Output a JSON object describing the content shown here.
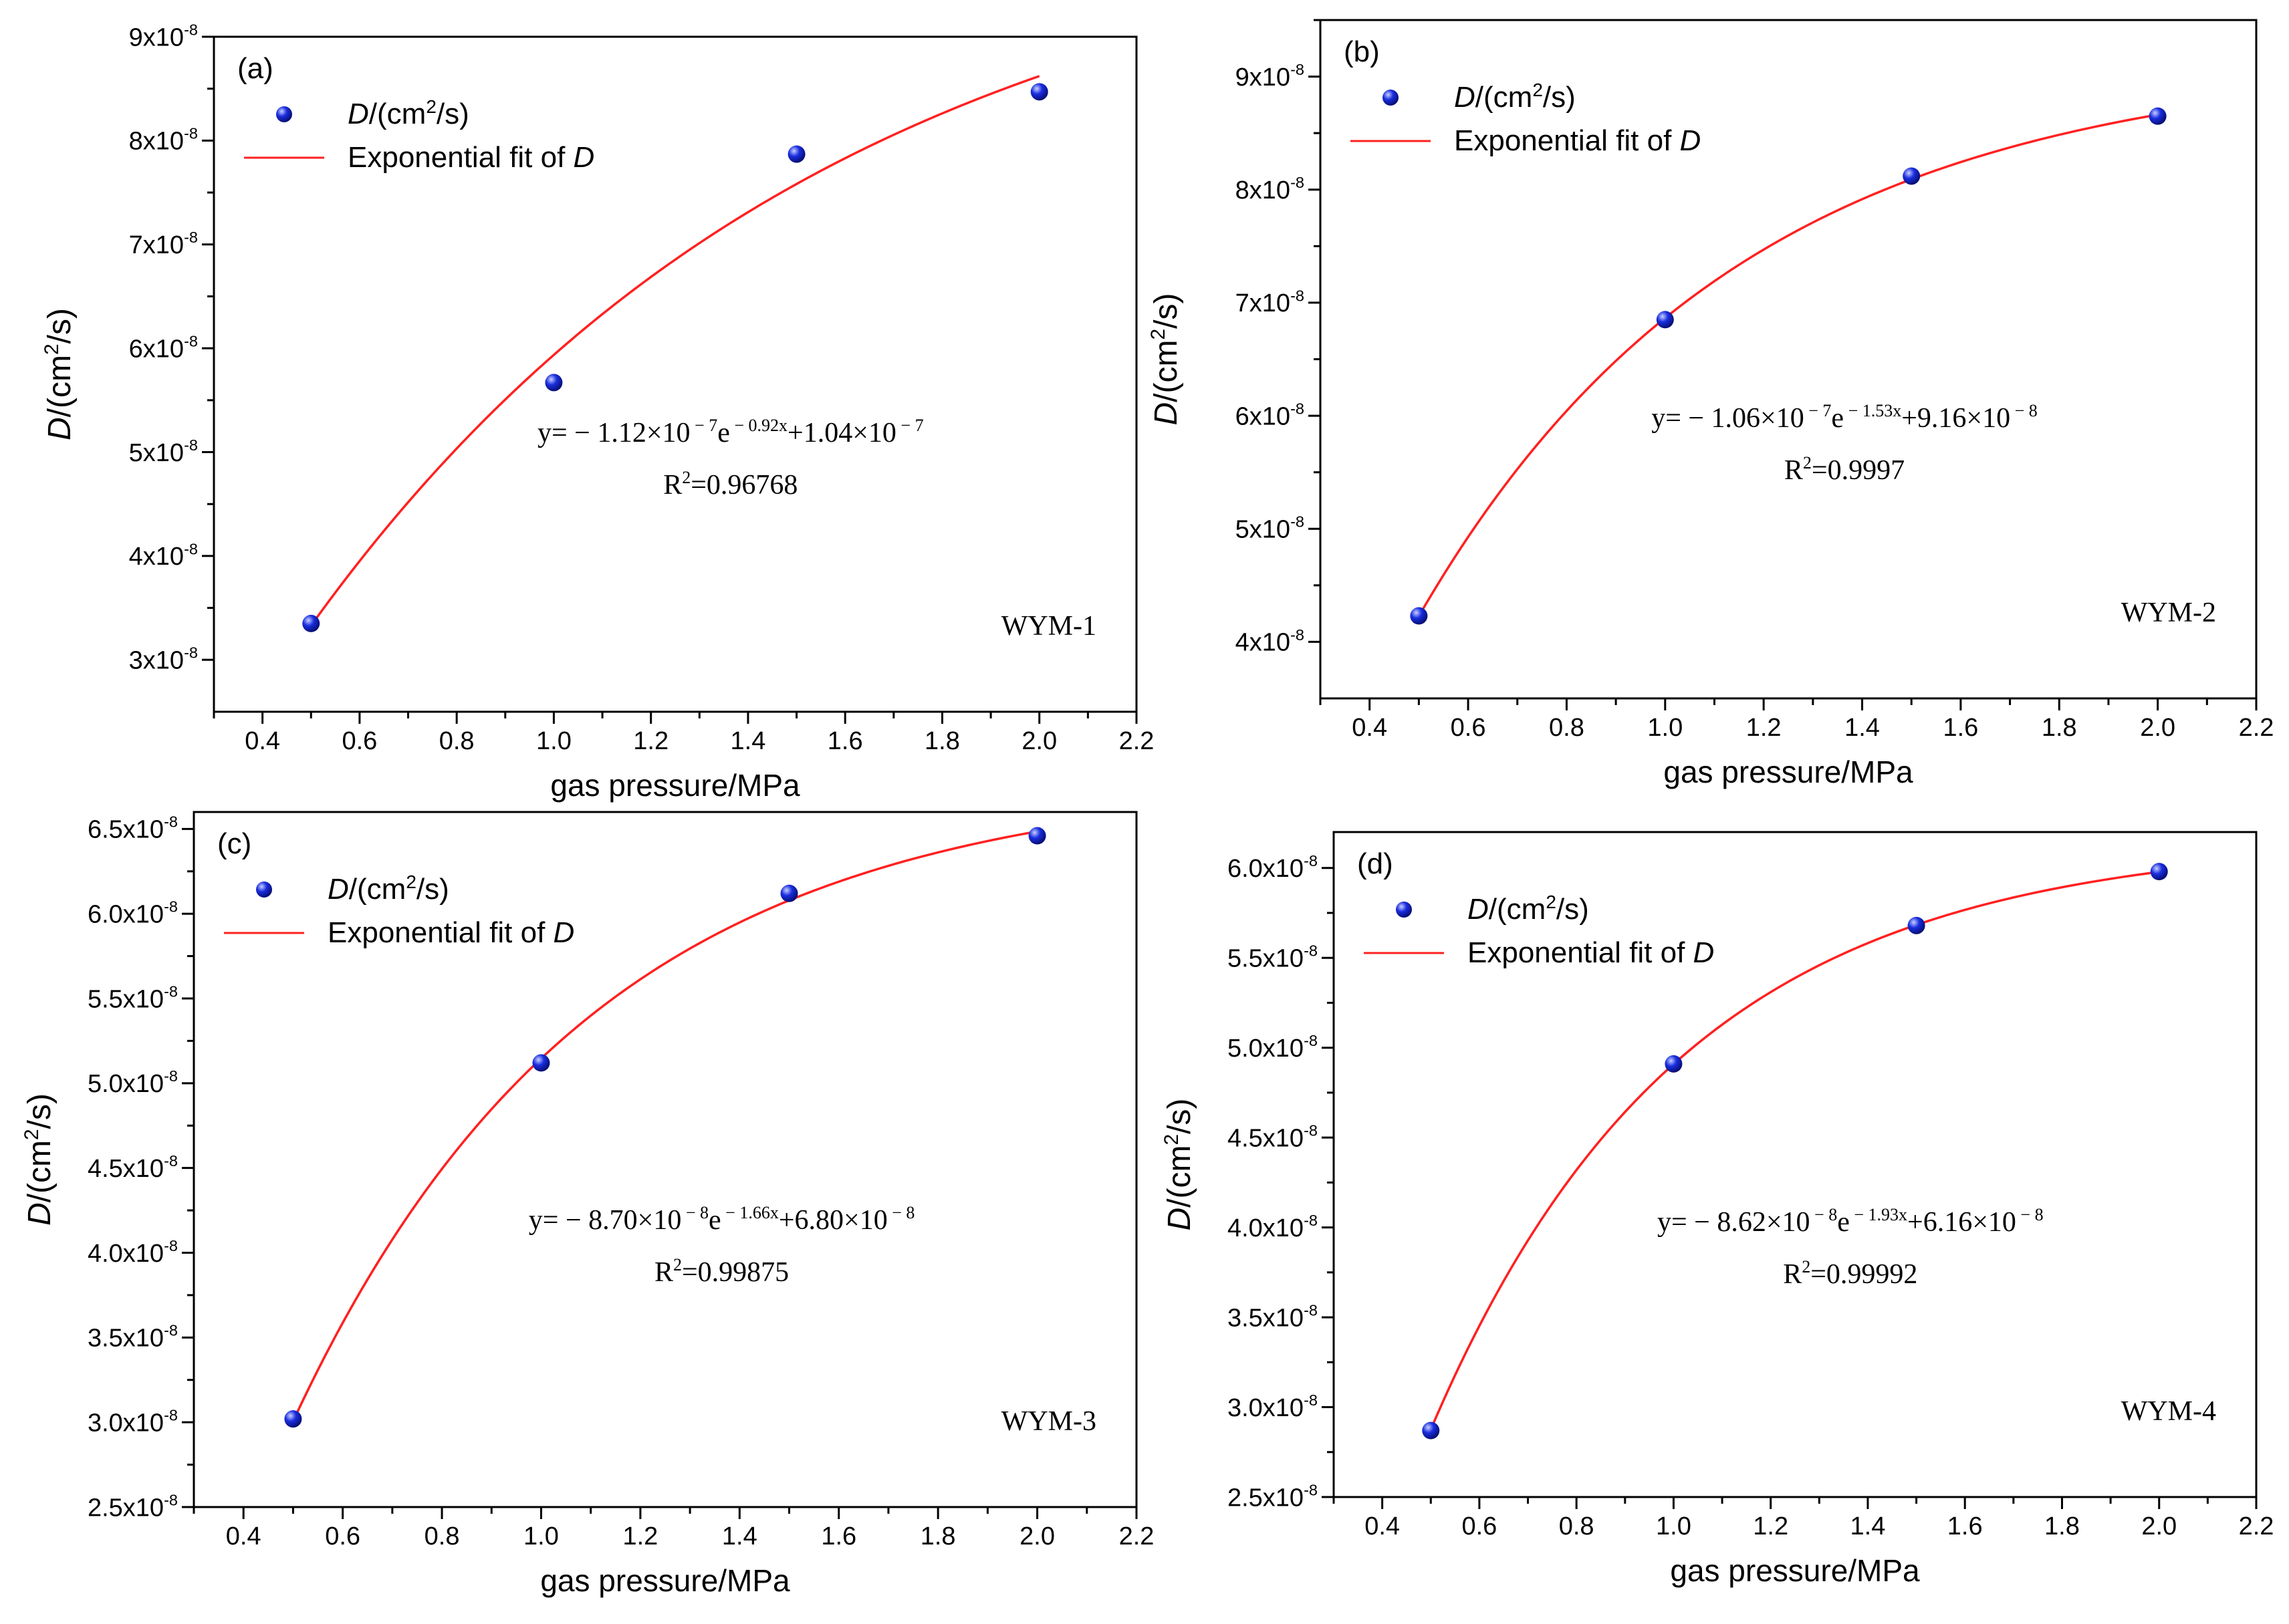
{
  "figure": {
    "panels": [
      {
        "panel_label": "(a)",
        "sample_label": "WYM-1",
        "xlabel": "gas pressure/MPa",
        "ylabel": {
          "pre": "D",
          "mid": "/(cm",
          "sup": "2",
          "post": "/s)"
        },
        "legend": {
          "points": {
            "pre": "D",
            "mid": "/(cm",
            "sup": "2",
            "post": "/s)"
          },
          "fit": {
            "text": "Exponential fit of ",
            "var": "D"
          }
        },
        "equation": {
          "lead": "y= − 1.12×10",
          "exp1": " − 7",
          "mid": "e",
          "exp2": " − 0.92x",
          "tail": "+1.04×10",
          "exp3": " − 7"
        },
        "r2": {
          "pre": "R",
          "sup": "2",
          "post": "=0.96768"
        }
      },
      {
        "panel_label": "(b)",
        "sample_label": "WYM-2",
        "xlabel": "gas pressure/MPa",
        "ylabel": {
          "pre": "D",
          "mid": "/(cm",
          "sup": "2",
          "post": "/s)"
        },
        "legend": {
          "points": {
            "pre": "D",
            "mid": "/(cm",
            "sup": "2",
            "post": "/s)"
          },
          "fit": {
            "text": "Exponential fit of ",
            "var": "D"
          }
        },
        "equation": {
          "lead": "y= − 1.06×10",
          "exp1": " − 7",
          "mid": "e",
          "exp2": " − 1.53x",
          "tail": "+9.16×10",
          "exp3": " − 8"
        },
        "r2": {
          "pre": "R",
          "sup": "2",
          "post": "=0.9997"
        }
      },
      {
        "panel_label": "(c)",
        "sample_label": "WYM-3",
        "xlabel": "gas pressure/MPa",
        "ylabel": {
          "pre": "D",
          "mid": "/(cm",
          "sup": "2",
          "post": "/s)"
        },
        "legend": {
          "points": {
            "pre": "D",
            "mid": "/(cm",
            "sup": "2",
            "post": "/s)"
          },
          "fit": {
            "text": "Exponential fit of ",
            "var": "D"
          }
        },
        "equation": {
          "lead": "y= − 8.70×10",
          "exp1": " − 8",
          "mid": "e",
          "exp2": " − 1.66x",
          "tail": "+6.80×10",
          "exp3": " − 8"
        },
        "r2": {
          "pre": "R",
          "sup": "2",
          "post": "=0.99875"
        }
      },
      {
        "panel_label": "(d)",
        "sample_label": "WYM-4",
        "xlabel": "gas pressure/MPa",
        "ylabel": {
          "pre": "D",
          "mid": "/(cm",
          "sup": "2",
          "post": "/s)"
        },
        "legend": {
          "points": {
            "pre": "D",
            "mid": "/(cm",
            "sup": "2",
            "post": "/s)"
          },
          "fit": {
            "text": "Exponential fit of ",
            "var": "D"
          }
        },
        "equation": {
          "lead": "y= − 8.62×10",
          "exp1": " − 8",
          "mid": "e",
          "exp2": " − 1.93x",
          "tail": "+6.16×10",
          "exp3": " − 8"
        },
        "r2": {
          "pre": "R",
          "sup": "2",
          "post": "=0.99992"
        }
      }
    ]
  },
  "colors": {
    "fit_line": "#ff2020",
    "point_fill": "#1a2ee0",
    "point_highlight": "#c8d0ff",
    "axis": "#000000"
  },
  "chart_data": [
    {
      "type": "scatter",
      "title": "(a)",
      "xlabel": "gas pressure/MPa",
      "ylabel": "D/(cm2/s)",
      "xlim": [
        0.3,
        2.2
      ],
      "ylim": [
        2.5e-08,
        9e-08
      ],
      "x_ticks": [
        0.4,
        0.6,
        0.8,
        1.0,
        1.2,
        1.4,
        1.6,
        1.8,
        2.0,
        2.2
      ],
      "x_tick_labels": [
        "0.4",
        "0.6",
        "0.8",
        "1.0",
        "1.2",
        "1.4",
        "1.6",
        "1.8",
        "2.0",
        "2.2"
      ],
      "y_ticks": [
        3e-08,
        4e-08,
        5e-08,
        6e-08,
        7e-08,
        8e-08,
        9e-08
      ],
      "y_tick_mantissas": [
        "3",
        "4",
        "5",
        "6",
        "7",
        "8",
        "9"
      ],
      "y_tick_exponent": "-8",
      "series": [
        {
          "name": "D/(cm2/s)",
          "kind": "points",
          "x": [
            0.5,
            1.0,
            1.5,
            2.0
          ],
          "y": [
            3.35e-08,
            5.67e-08,
            7.87e-08,
            8.47e-08
          ]
        },
        {
          "name": "Exponential fit of D",
          "kind": "fit",
          "model": {
            "a": 1.12e-07,
            "b": 0.92,
            "c": 1.04e-07
          },
          "x_range": [
            0.5,
            2.0
          ]
        }
      ],
      "legend": "top-left",
      "grid": false
    },
    {
      "type": "scatter",
      "title": "(b)",
      "xlabel": "gas pressure/MPa",
      "ylabel": "D/(cm2/s)",
      "xlim": [
        0.3,
        2.2
      ],
      "ylim": [
        3.5e-08,
        9.5e-08
      ],
      "x_ticks": [
        0.4,
        0.6,
        0.8,
        1.0,
        1.2,
        1.4,
        1.6,
        1.8,
        2.0,
        2.2
      ],
      "x_tick_labels": [
        "0.4",
        "0.6",
        "0.8",
        "1.0",
        "1.2",
        "1.4",
        "1.6",
        "1.8",
        "2.0",
        "2.2"
      ],
      "y_ticks": [
        4e-08,
        5e-08,
        6e-08,
        7e-08,
        8e-08,
        9e-08
      ],
      "y_tick_mantissas": [
        "4",
        "5",
        "6",
        "7",
        "8",
        "9"
      ],
      "y_tick_exponent": "-8",
      "series": [
        {
          "name": "D/(cm2/s)",
          "kind": "points",
          "x": [
            0.5,
            1.0,
            1.5,
            2.0
          ],
          "y": [
            4.23e-08,
            6.85e-08,
            8.12e-08,
            8.65e-08
          ]
        },
        {
          "name": "Exponential fit of D",
          "kind": "fit",
          "model": {
            "a": 1.06e-07,
            "b": 1.53,
            "c": 9.16e-08
          },
          "x_range": [
            0.5,
            2.0
          ]
        }
      ],
      "legend": "top-left",
      "grid": false
    },
    {
      "type": "scatter",
      "title": "(c)",
      "xlabel": "gas pressure/MPa",
      "ylabel": "D/(cm2/s)",
      "xlim": [
        0.3,
        2.2
      ],
      "ylim": [
        2.5e-08,
        6.6e-08
      ],
      "x_ticks": [
        0.4,
        0.6,
        0.8,
        1.0,
        1.2,
        1.4,
        1.6,
        1.8,
        2.0,
        2.2
      ],
      "x_tick_labels": [
        "0.4",
        "0.6",
        "0.8",
        "1.0",
        "1.2",
        "1.4",
        "1.6",
        "1.8",
        "2.0",
        "2.2"
      ],
      "y_ticks": [
        2.5e-08,
        3e-08,
        3.5e-08,
        4e-08,
        4.5e-08,
        5e-08,
        5.5e-08,
        6e-08,
        6.5e-08
      ],
      "y_tick_mantissas": [
        "2.5",
        "3.0",
        "3.5",
        "4.0",
        "4.5",
        "5.0",
        "5.5",
        "6.0",
        "6.5"
      ],
      "y_tick_exponent": "-8",
      "series": [
        {
          "name": "D/(cm2/s)",
          "kind": "points",
          "x": [
            0.5,
            1.0,
            1.5,
            2.0
          ],
          "y": [
            3.02e-08,
            5.12e-08,
            6.12e-08,
            6.46e-08
          ]
        },
        {
          "name": "Exponential fit of D",
          "kind": "fit",
          "model": {
            "a": 8.7e-08,
            "b": 1.66,
            "c": 6.8e-08
          },
          "x_range": [
            0.5,
            2.0
          ]
        }
      ],
      "legend": "top-left",
      "grid": false
    },
    {
      "type": "scatter",
      "title": "(d)",
      "xlabel": "gas pressure/MPa",
      "ylabel": "D/(cm2/s)",
      "xlim": [
        0.3,
        2.2
      ],
      "ylim": [
        2.5e-08,
        6.2e-08
      ],
      "x_ticks": [
        0.4,
        0.6,
        0.8,
        1.0,
        1.2,
        1.4,
        1.6,
        1.8,
        2.0,
        2.2
      ],
      "x_tick_labels": [
        "0.4",
        "0.6",
        "0.8",
        "1.0",
        "1.2",
        "1.4",
        "1.6",
        "1.8",
        "2.0",
        "2.2"
      ],
      "y_ticks": [
        2.5e-08,
        3e-08,
        3.5e-08,
        4e-08,
        4.5e-08,
        5e-08,
        5.5e-08,
        6e-08
      ],
      "y_tick_mantissas": [
        "2.5",
        "3.0",
        "3.5",
        "4.0",
        "4.5",
        "5.0",
        "5.5",
        "6.0"
      ],
      "y_tick_exponent": "-8",
      "series": [
        {
          "name": "D/(cm2/s)",
          "kind": "points",
          "x": [
            0.5,
            1.0,
            1.5,
            2.0
          ],
          "y": [
            2.87e-08,
            4.91e-08,
            5.68e-08,
            5.98e-08
          ]
        },
        {
          "name": "Exponential fit of D",
          "kind": "fit",
          "model": {
            "a": 8.62e-08,
            "b": 1.93,
            "c": 6.16e-08
          },
          "x_range": [
            0.5,
            2.0
          ]
        }
      ],
      "legend": "top-left",
      "grid": false
    }
  ]
}
